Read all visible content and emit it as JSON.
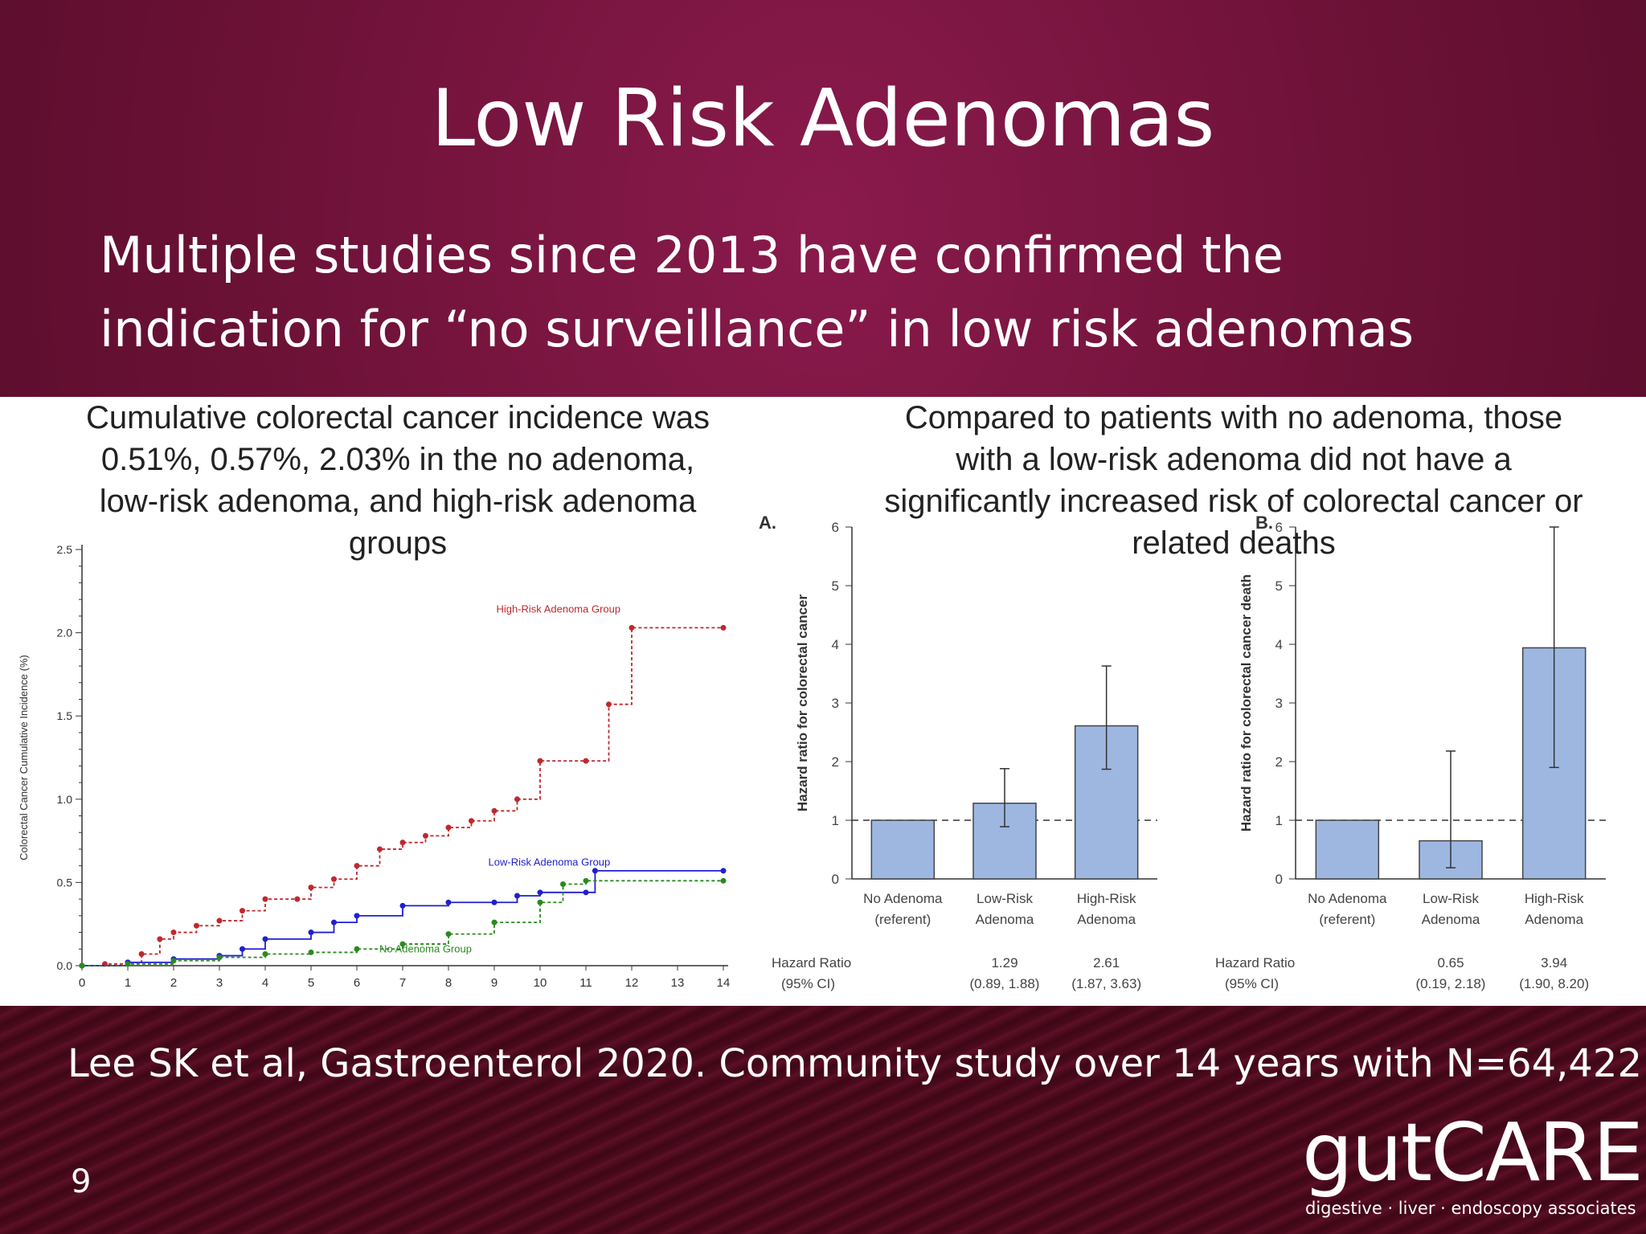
{
  "slide": {
    "title": "Low Risk Adenomas",
    "subtitle_line1": "Multiple studies since 2013 have confirmed the",
    "subtitle_line2": "indication for “no surveillance” in low risk adenomas",
    "caption_left": [
      "Cumulative colorectal cancer incidence was",
      "0.51%, 0.57%, 2.03% in the no adenoma,",
      "low-risk adenoma, and high-risk adenoma",
      "groups"
    ],
    "caption_right": [
      "Compared to patients with no adenoma, those",
      "with a low-risk adenoma did not have a",
      "significantly increased risk of colorectal cancer or",
      "related deaths"
    ],
    "citation": "Lee SK et al, Gastroenterol 2020. Community study over 14 years with N=64,422.",
    "page_number": "9",
    "logo_text": "gutCARE",
    "logo_tagline": "digestive · liver · endoscopy associates",
    "colors": {
      "high": "#c0282e",
      "low": "#1f1fd0",
      "none": "#2a8a1e",
      "bar": "#9db7e0"
    }
  },
  "chart_data": [
    {
      "type": "line",
      "ylabel": "Colorectal Cancer Cumulative Incidence (%)",
      "xlim": [
        0,
        14
      ],
      "ylim": [
        0,
        2.5
      ],
      "xticks": [
        "0",
        "1",
        "2",
        "3",
        "4",
        "5",
        "6",
        "7",
        "8",
        "9",
        "10",
        "11",
        "12",
        "13",
        "14"
      ],
      "yticks": [
        "0.0",
        "0.5",
        "1.0",
        "1.5",
        "2.0",
        "2.5"
      ],
      "series": [
        {
          "name": "High-Risk Adenoma Group",
          "x": [
            0,
            0.5,
            1,
            1.3,
            1.7,
            2,
            2.5,
            3,
            3.5,
            4,
            4.7,
            5,
            5.5,
            6,
            6.5,
            7,
            7.5,
            8,
            8.5,
            9,
            9.5,
            10,
            11,
            11.5,
            12,
            14
          ],
          "y": [
            0,
            0.01,
            0.02,
            0.07,
            0.16,
            0.2,
            0.24,
            0.27,
            0.33,
            0.4,
            0.4,
            0.47,
            0.52,
            0.6,
            0.7,
            0.74,
            0.78,
            0.83,
            0.87,
            0.93,
            1.0,
            1.23,
            1.23,
            1.57,
            2.03,
            2.03
          ]
        },
        {
          "name": "Low-Risk Adenoma Group",
          "x": [
            0,
            1,
            2,
            3,
            3.5,
            4,
            5,
            5.5,
            6,
            7,
            8,
            9,
            9.5,
            10,
            11,
            11.2,
            14
          ],
          "y": [
            0,
            0.02,
            0.04,
            0.06,
            0.1,
            0.16,
            0.2,
            0.26,
            0.3,
            0.36,
            0.38,
            0.38,
            0.42,
            0.44,
            0.44,
            0.57,
            0.57
          ]
        },
        {
          "name": "No Adenoma Group",
          "x": [
            0,
            1,
            2,
            3,
            4,
            5,
            6,
            7,
            8,
            9,
            10,
            10.5,
            11,
            14
          ],
          "y": [
            0,
            0.01,
            0.03,
            0.05,
            0.07,
            0.08,
            0.1,
            0.13,
            0.19,
            0.26,
            0.38,
            0.49,
            0.51,
            0.51
          ]
        }
      ]
    },
    {
      "type": "bar",
      "panel_label": "A.",
      "ylabel": "Hazard ratio for colorectal cancer",
      "ylim": [
        0,
        6
      ],
      "yticks": [
        "0",
        "1",
        "2",
        "3",
        "4",
        "5",
        "6"
      ],
      "categories": [
        [
          "No Adenoma",
          "(referent)"
        ],
        [
          "Low-Risk",
          "Adenoma"
        ],
        [
          "High-Risk",
          "Adenoma"
        ]
      ],
      "values": [
        1.0,
        1.29,
        2.61
      ],
      "ci_low": [
        null,
        0.89,
        1.87
      ],
      "ci_high": [
        null,
        1.88,
        3.63
      ],
      "hr_label": [
        "Hazard Ratio",
        "(95% CI)"
      ],
      "hr_values": [
        [
          "",
          ""
        ],
        [
          "1.29",
          "(0.89, 1.88)"
        ],
        [
          "2.61",
          "(1.87, 3.63)"
        ]
      ]
    },
    {
      "type": "bar",
      "panel_label": "B.",
      "ylabel": "Hazard ratio for colorectal cancer death",
      "ylim": [
        0,
        6
      ],
      "yticks": [
        "0",
        "1",
        "2",
        "3",
        "4",
        "5",
        "6"
      ],
      "categories": [
        [
          "No Adenoma",
          "(referent)"
        ],
        [
          "Low-Risk",
          "Adenoma"
        ],
        [
          "High-Risk",
          "Adenoma"
        ]
      ],
      "values": [
        1.0,
        0.65,
        3.94
      ],
      "ci_low": [
        null,
        0.19,
        1.9
      ],
      "ci_high": [
        null,
        2.18,
        8.2
      ],
      "hr_label": [
        "Hazard Ratio",
        "(95% CI)"
      ],
      "hr_values": [
        [
          "",
          ""
        ],
        [
          "0.65",
          "(0.19, 2.18)"
        ],
        [
          "3.94",
          "(1.90, 8.20)"
        ]
      ]
    }
  ]
}
